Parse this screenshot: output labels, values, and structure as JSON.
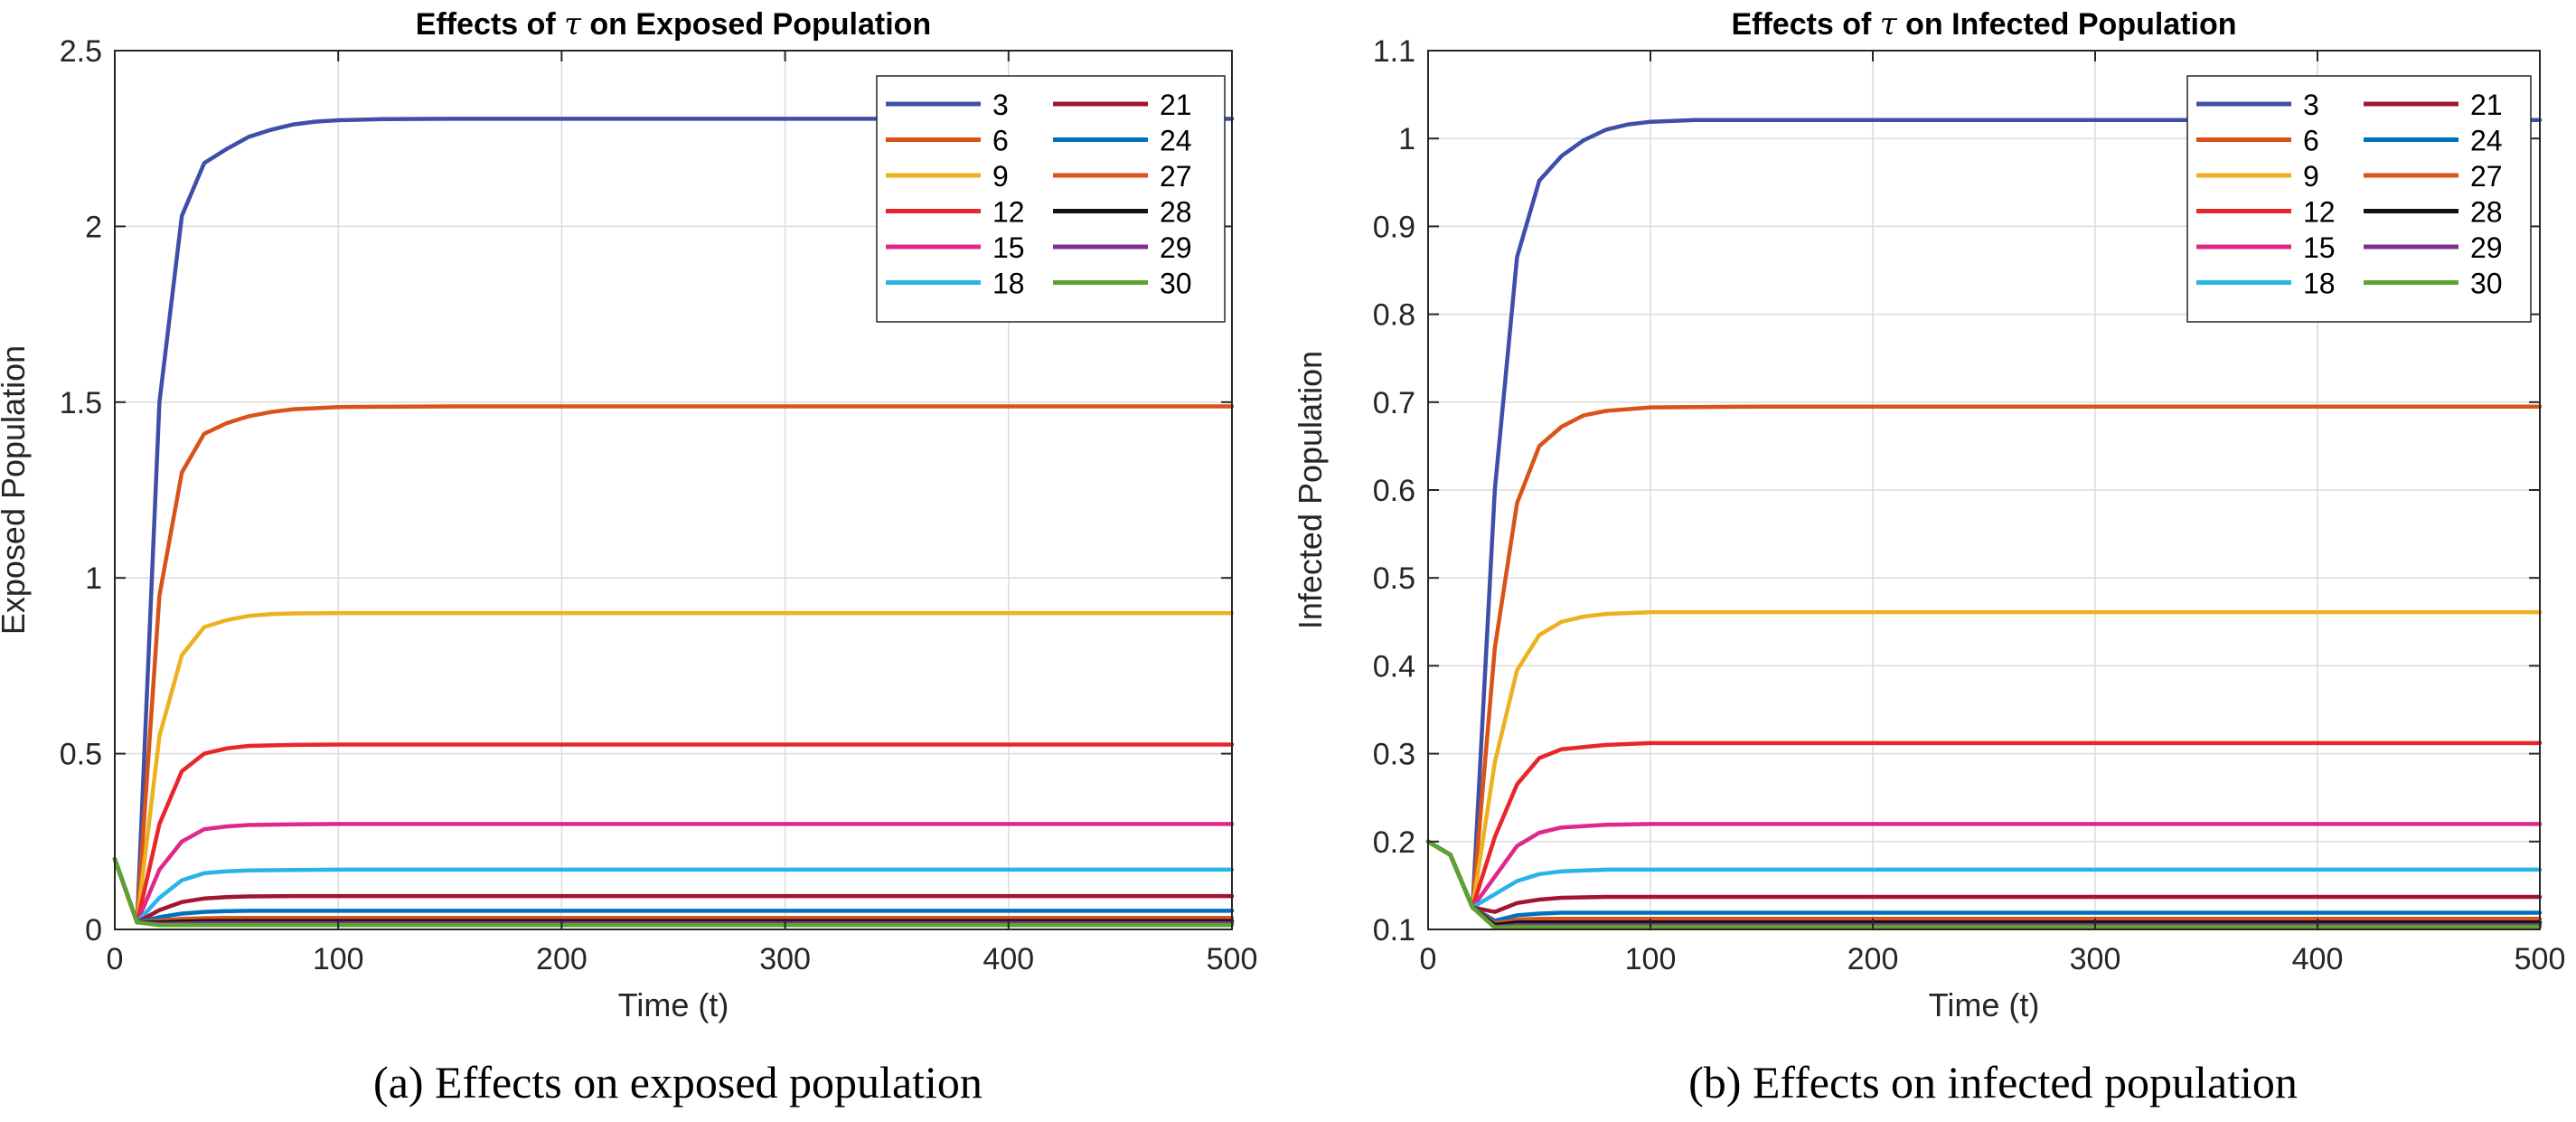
{
  "chart_data": [
    {
      "type": "line",
      "title_prefix": "Effects of ",
      "title_symbol": "τ",
      "title_suffix": " on Exposed Population",
      "xlabel": "Time (t)",
      "ylabel": "Exposed Population",
      "xlim": [
        0,
        500
      ],
      "ylim": [
        0,
        2.5
      ],
      "xticks": [
        0,
        100,
        200,
        300,
        400,
        500
      ],
      "yticks": [
        0,
        0.5,
        1,
        1.5,
        2,
        2.5
      ],
      "ytick_labels": [
        "0",
        "0.5",
        "1",
        "1.5",
        "2",
        "2.5"
      ],
      "grid": true,
      "legend": "top-right",
      "caption": "(a) Effects on exposed population",
      "series": [
        {
          "name": "3",
          "color": "#3f4fa7",
          "x": [
            0,
            10,
            20,
            30,
            40,
            50,
            60,
            70,
            80,
            90,
            100,
            120,
            150,
            500
          ],
          "values": [
            0.2,
            0.02,
            1.5,
            2.03,
            2.18,
            2.22,
            2.255,
            2.275,
            2.29,
            2.298,
            2.302,
            2.305,
            2.306,
            2.306
          ]
        },
        {
          "name": "6",
          "color": "#d95319",
          "x": [
            0,
            10,
            20,
            30,
            40,
            50,
            60,
            70,
            80,
            100,
            150,
            500
          ],
          "values": [
            0.2,
            0.02,
            0.95,
            1.3,
            1.41,
            1.44,
            1.46,
            1.472,
            1.48,
            1.486,
            1.488,
            1.488
          ]
        },
        {
          "name": "9",
          "color": "#edb120",
          "x": [
            0,
            10,
            20,
            30,
            40,
            50,
            60,
            70,
            80,
            100,
            150,
            500
          ],
          "values": [
            0.2,
            0.02,
            0.55,
            0.78,
            0.86,
            0.88,
            0.892,
            0.897,
            0.899,
            0.9,
            0.9,
            0.9
          ]
        },
        {
          "name": "12",
          "color": "#e8262a",
          "x": [
            0,
            10,
            20,
            30,
            40,
            50,
            60,
            80,
            100,
            500
          ],
          "values": [
            0.2,
            0.02,
            0.3,
            0.45,
            0.5,
            0.515,
            0.522,
            0.525,
            0.526,
            0.526
          ]
        },
        {
          "name": "15",
          "color": "#e0288a",
          "x": [
            0,
            10,
            20,
            30,
            40,
            50,
            60,
            80,
            100,
            500
          ],
          "values": [
            0.2,
            0.02,
            0.17,
            0.25,
            0.285,
            0.293,
            0.297,
            0.299,
            0.3,
            0.3
          ]
        },
        {
          "name": "18",
          "color": "#29b4e8",
          "x": [
            0,
            10,
            20,
            30,
            40,
            50,
            60,
            80,
            100,
            500
          ],
          "values": [
            0.2,
            0.02,
            0.09,
            0.14,
            0.16,
            0.165,
            0.168,
            0.169,
            0.17,
            0.17
          ]
        },
        {
          "name": "21",
          "color": "#a2142f",
          "x": [
            0,
            10,
            20,
            30,
            40,
            50,
            60,
            80,
            500
          ],
          "values": [
            0.2,
            0.02,
            0.055,
            0.078,
            0.088,
            0.092,
            0.094,
            0.095,
            0.095
          ]
        },
        {
          "name": "24",
          "color": "#0072bd",
          "x": [
            0,
            10,
            20,
            30,
            40,
            50,
            60,
            500
          ],
          "values": [
            0.2,
            0.02,
            0.035,
            0.045,
            0.05,
            0.052,
            0.053,
            0.053
          ]
        },
        {
          "name": "27",
          "color": "#d9531e",
          "x": [
            0,
            10,
            20,
            30,
            40,
            50,
            500
          ],
          "values": [
            0.2,
            0.02,
            0.025,
            0.03,
            0.032,
            0.033,
            0.033
          ]
        },
        {
          "name": "28",
          "color": "#111111",
          "x": [
            0,
            10,
            20,
            30,
            40,
            500
          ],
          "values": [
            0.2,
            0.02,
            0.02,
            0.022,
            0.024,
            0.024
          ]
        },
        {
          "name": "29",
          "color": "#7e2f8e",
          "x": [
            0,
            10,
            20,
            30,
            40,
            500
          ],
          "values": [
            0.2,
            0.02,
            0.016,
            0.017,
            0.018,
            0.018
          ]
        },
        {
          "name": "30",
          "color": "#5aa52e",
          "x": [
            0,
            10,
            20,
            30,
            40,
            500
          ],
          "values": [
            0.2,
            0.02,
            0.012,
            0.012,
            0.012,
            0.012
          ]
        }
      ]
    },
    {
      "type": "line",
      "title_prefix": "Effects of ",
      "title_symbol": "τ",
      "title_suffix": " on Infected Population",
      "xlabel": "Time (t)",
      "ylabel": "Infected Population",
      "xlim": [
        0,
        500
      ],
      "ylim": [
        0.1,
        1.1
      ],
      "xticks": [
        0,
        100,
        200,
        300,
        400,
        500
      ],
      "yticks": [
        0.1,
        0.2,
        0.3,
        0.4,
        0.5,
        0.6,
        0.7,
        0.8,
        0.9,
        1,
        1.1
      ],
      "ytick_labels": [
        "0.1",
        "0.2",
        "0.3",
        "0.4",
        "0.5",
        "0.6",
        "0.7",
        "0.8",
        "0.9",
        "1",
        "1.1"
      ],
      "grid": true,
      "legend": "top-right",
      "caption": "(b) Effects on infected population",
      "series": [
        {
          "name": "3",
          "color": "#3f4fa7",
          "x": [
            0,
            10,
            20,
            30,
            40,
            50,
            60,
            70,
            80,
            90,
            100,
            120,
            150,
            500
          ],
          "values": [
            0.2,
            0.185,
            0.125,
            0.6,
            0.865,
            0.952,
            0.98,
            0.998,
            1.01,
            1.016,
            1.019,
            1.021,
            1.021,
            1.021
          ]
        },
        {
          "name": "6",
          "color": "#d95319",
          "x": [
            0,
            10,
            20,
            30,
            40,
            50,
            60,
            70,
            80,
            100,
            150,
            500
          ],
          "values": [
            0.2,
            0.185,
            0.125,
            0.42,
            0.585,
            0.65,
            0.672,
            0.685,
            0.69,
            0.694,
            0.695,
            0.695
          ]
        },
        {
          "name": "9",
          "color": "#edb120",
          "x": [
            0,
            10,
            20,
            30,
            40,
            50,
            60,
            70,
            80,
            100,
            150,
            500
          ],
          "values": [
            0.2,
            0.185,
            0.125,
            0.29,
            0.395,
            0.435,
            0.45,
            0.456,
            0.459,
            0.461,
            0.461,
            0.461
          ]
        },
        {
          "name": "12",
          "color": "#e8262a",
          "x": [
            0,
            10,
            20,
            30,
            40,
            50,
            60,
            80,
            100,
            500
          ],
          "values": [
            0.2,
            0.185,
            0.125,
            0.205,
            0.265,
            0.295,
            0.305,
            0.31,
            0.312,
            0.312
          ]
        },
        {
          "name": "15",
          "color": "#e0288a",
          "x": [
            0,
            10,
            20,
            30,
            40,
            50,
            60,
            80,
            100,
            500
          ],
          "values": [
            0.2,
            0.185,
            0.125,
            0.16,
            0.195,
            0.21,
            0.216,
            0.219,
            0.22,
            0.22
          ]
        },
        {
          "name": "18",
          "color": "#29b4e8",
          "x": [
            0,
            10,
            20,
            30,
            40,
            50,
            60,
            80,
            100,
            500
          ],
          "values": [
            0.2,
            0.185,
            0.125,
            0.14,
            0.155,
            0.163,
            0.166,
            0.168,
            0.168,
            0.168
          ]
        },
        {
          "name": "21",
          "color": "#a2142f",
          "x": [
            0,
            10,
            20,
            30,
            40,
            50,
            60,
            80,
            500
          ],
          "values": [
            0.2,
            0.185,
            0.125,
            0.12,
            0.13,
            0.134,
            0.136,
            0.137,
            0.137
          ]
        },
        {
          "name": "24",
          "color": "#0072bd",
          "x": [
            0,
            10,
            20,
            30,
            40,
            50,
            60,
            500
          ],
          "values": [
            0.2,
            0.185,
            0.125,
            0.11,
            0.116,
            0.118,
            0.119,
            0.119
          ]
        },
        {
          "name": "27",
          "color": "#d9531e",
          "x": [
            0,
            10,
            20,
            30,
            40,
            50,
            500
          ],
          "values": [
            0.2,
            0.185,
            0.125,
            0.107,
            0.111,
            0.112,
            0.112
          ]
        },
        {
          "name": "28",
          "color": "#111111",
          "x": [
            0,
            10,
            20,
            30,
            40,
            500
          ],
          "values": [
            0.2,
            0.185,
            0.125,
            0.105,
            0.108,
            0.108
          ]
        },
        {
          "name": "29",
          "color": "#7e2f8e",
          "x": [
            0,
            10,
            20,
            30,
            40,
            500
          ],
          "values": [
            0.2,
            0.185,
            0.125,
            0.103,
            0.105,
            0.105
          ]
        },
        {
          "name": "30",
          "color": "#5aa52e",
          "x": [
            0,
            10,
            20,
            30,
            40,
            500
          ],
          "values": [
            0.2,
            0.185,
            0.125,
            0.102,
            0.103,
            0.103
          ]
        }
      ]
    }
  ]
}
